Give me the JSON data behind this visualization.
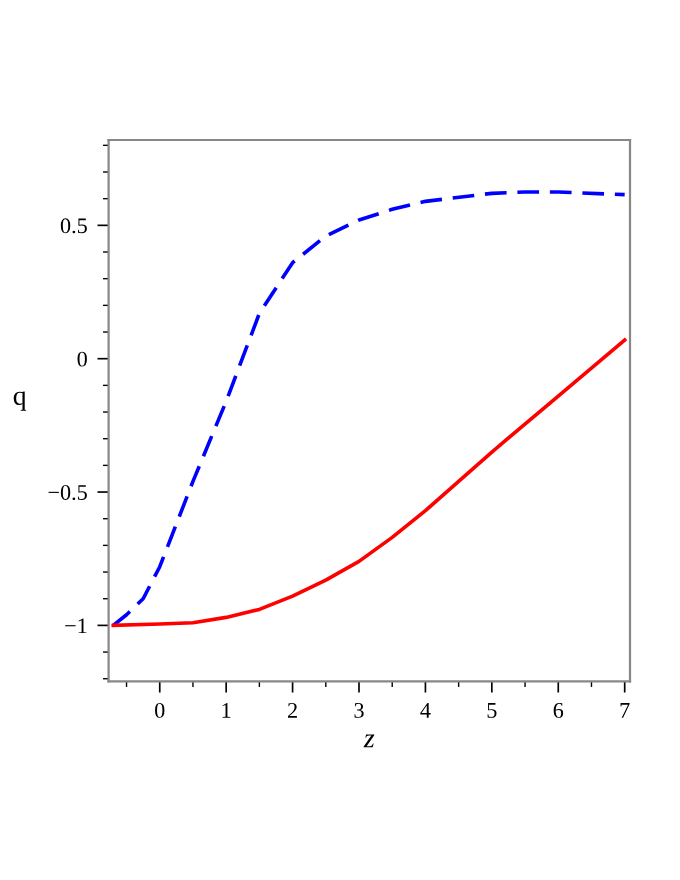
{
  "chart_data": {
    "type": "line",
    "xlabel": "z",
    "ylabel": "q",
    "xlim": [
      -0.77,
      7.08
    ],
    "ylim": [
      -1.21,
      0.82
    ],
    "xticks": [
      {
        "value": -0.5,
        "label": null
      },
      0,
      {
        "value": 0.5,
        "label": null
      },
      1,
      {
        "value": 1.5,
        "label": null
      },
      2,
      {
        "value": 2.5,
        "label": null
      },
      3,
      {
        "value": 3.5,
        "label": null
      },
      4,
      {
        "value": 4.5,
        "label": null
      },
      5,
      {
        "value": 5.5,
        "label": null
      },
      6,
      {
        "value": 6.5,
        "label": null
      },
      7
    ],
    "yticks": [
      {
        "value": -1.2,
        "label": null
      },
      {
        "value": -1.1,
        "label": null
      },
      {
        "value": -1,
        "label": "−1"
      },
      {
        "value": -0.9,
        "label": null
      },
      {
        "value": -0.8,
        "label": null
      },
      {
        "value": -0.7,
        "label": null
      },
      {
        "value": -0.6,
        "label": null
      },
      {
        "value": -0.5,
        "label": "−0.5"
      },
      {
        "value": -0.4,
        "label": null
      },
      {
        "value": -0.3,
        "label": null
      },
      {
        "value": -0.2,
        "label": null
      },
      {
        "value": -0.1,
        "label": null
      },
      0,
      {
        "value": 0.1,
        "label": null
      },
      {
        "value": 0.2,
        "label": null
      },
      {
        "value": 0.3,
        "label": null
      },
      {
        "value": 0.4,
        "label": null
      },
      0.5,
      {
        "value": 0.6,
        "label": null
      },
      {
        "value": 0.7,
        "label": null
      },
      {
        "value": 0.8,
        "label": null
      }
    ],
    "grid": false,
    "legend": false,
    "series": [
      {
        "color": "#0000ff",
        "line_style": "dashed",
        "x": [
          -0.7,
          -0.5,
          -0.25,
          0,
          0.5,
          1,
          1.5,
          2,
          2.5,
          3,
          3.5,
          4,
          5,
          5.5,
          6,
          7
        ],
        "values": [
          -1,
          -0.96,
          -0.9,
          -0.78,
          -0.46,
          -0.16,
          0.17,
          0.36,
          0.46,
          0.52,
          0.56,
          0.59,
          0.62,
          0.625,
          0.625,
          0.615
        ]
      },
      {
        "color": "#ff0000",
        "line_style": "solid",
        "x": [
          -0.7,
          0,
          0.5,
          1,
          1.5,
          2,
          2.5,
          3,
          3.5,
          4,
          4.5,
          5,
          6,
          7
        ],
        "values": [
          -1,
          -0.995,
          -0.99,
          -0.97,
          -0.94,
          -0.89,
          -0.83,
          -0.76,
          -0.67,
          -0.57,
          -0.46,
          -0.35,
          -0.14,
          0.07
        ]
      }
    ]
  }
}
